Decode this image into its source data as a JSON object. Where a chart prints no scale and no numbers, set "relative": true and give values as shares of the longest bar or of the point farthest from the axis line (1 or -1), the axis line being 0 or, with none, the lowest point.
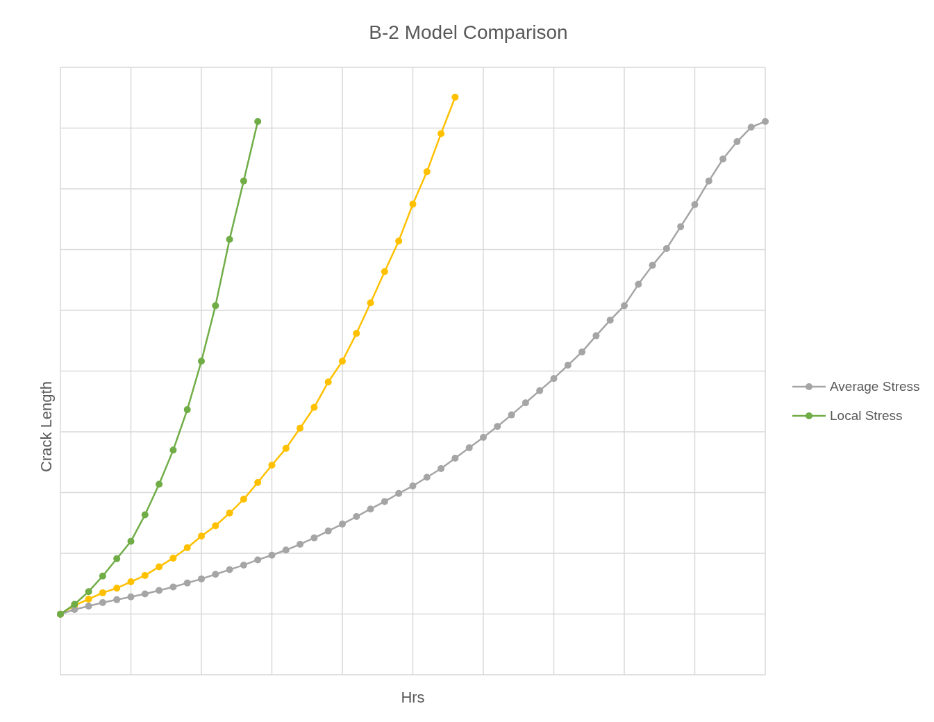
{
  "chart_data": {
    "type": "line",
    "title": "B-2 Model Comparison",
    "xlabel": "Hrs",
    "ylabel": "Crack Length",
    "relative": true,
    "grid": true,
    "legend": "right",
    "marker": "circle",
    "line_style": "solid",
    "categories": [
      null,
      null,
      null,
      null,
      null,
      null,
      null,
      null,
      null,
      null,
      null,
      null,
      null,
      null,
      null,
      null,
      null,
      null,
      null,
      null,
      null,
      null,
      null,
      null,
      null,
      null,
      null,
      null,
      null,
      null,
      null,
      null,
      null,
      null,
      null,
      null,
      null,
      null,
      null,
      null,
      null,
      null,
      null,
      null,
      null,
      null,
      null,
      null,
      null,
      null,
      null
    ],
    "series": [
      {
        "color": "#ffc000",
        "values": [
          0.105,
          0.12,
          0.131,
          0.142,
          0.15,
          0.161,
          0.172,
          0.187,
          0.202,
          0.22,
          0.24,
          0.258,
          0.28,
          0.304,
          0.333,
          0.363,
          0.392,
          0.427,
          0.463,
          0.507,
          0.543,
          0.591,
          0.644,
          0.698,
          0.751,
          0.815,
          0.871,
          0.937,
          1.0,
          null,
          null,
          null,
          null,
          null,
          null,
          null,
          null,
          null,
          null,
          null,
          null,
          null,
          null,
          null,
          null,
          null,
          null,
          null,
          null,
          null,
          null
        ]
      },
      {
        "name": "Average Stress",
        "color": "#a5a5a5",
        "values": [
          0.105,
          0.113,
          0.119,
          0.125,
          0.13,
          0.135,
          0.14,
          0.146,
          0.152,
          0.159,
          0.166,
          0.174,
          0.182,
          0.19,
          0.199,
          0.207,
          0.216,
          0.226,
          0.237,
          0.249,
          0.261,
          0.274,
          0.287,
          0.3,
          0.314,
          0.327,
          0.342,
          0.357,
          0.375,
          0.393,
          0.411,
          0.43,
          0.45,
          0.471,
          0.492,
          0.513,
          0.536,
          0.559,
          0.587,
          0.614,
          0.639,
          0.676,
          0.709,
          0.738,
          0.776,
          0.814,
          0.855,
          0.893,
          0.923,
          0.948,
          0.958
        ]
      },
      {
        "name": "Local Stress",
        "color": "#70ad47",
        "values": [
          0.105,
          0.122,
          0.144,
          0.171,
          0.201,
          0.231,
          0.277,
          0.33,
          0.389,
          0.459,
          0.543,
          0.639,
          0.754,
          0.855,
          0.958,
          null,
          null,
          null,
          null,
          null,
          null,
          null,
          null,
          null,
          null,
          null,
          null,
          null,
          null,
          null,
          null,
          null,
          null,
          null,
          null,
          null,
          null,
          null,
          null,
          null,
          null,
          null,
          null,
          null,
          null,
          null,
          null,
          null,
          null,
          null,
          null
        ]
      }
    ]
  }
}
